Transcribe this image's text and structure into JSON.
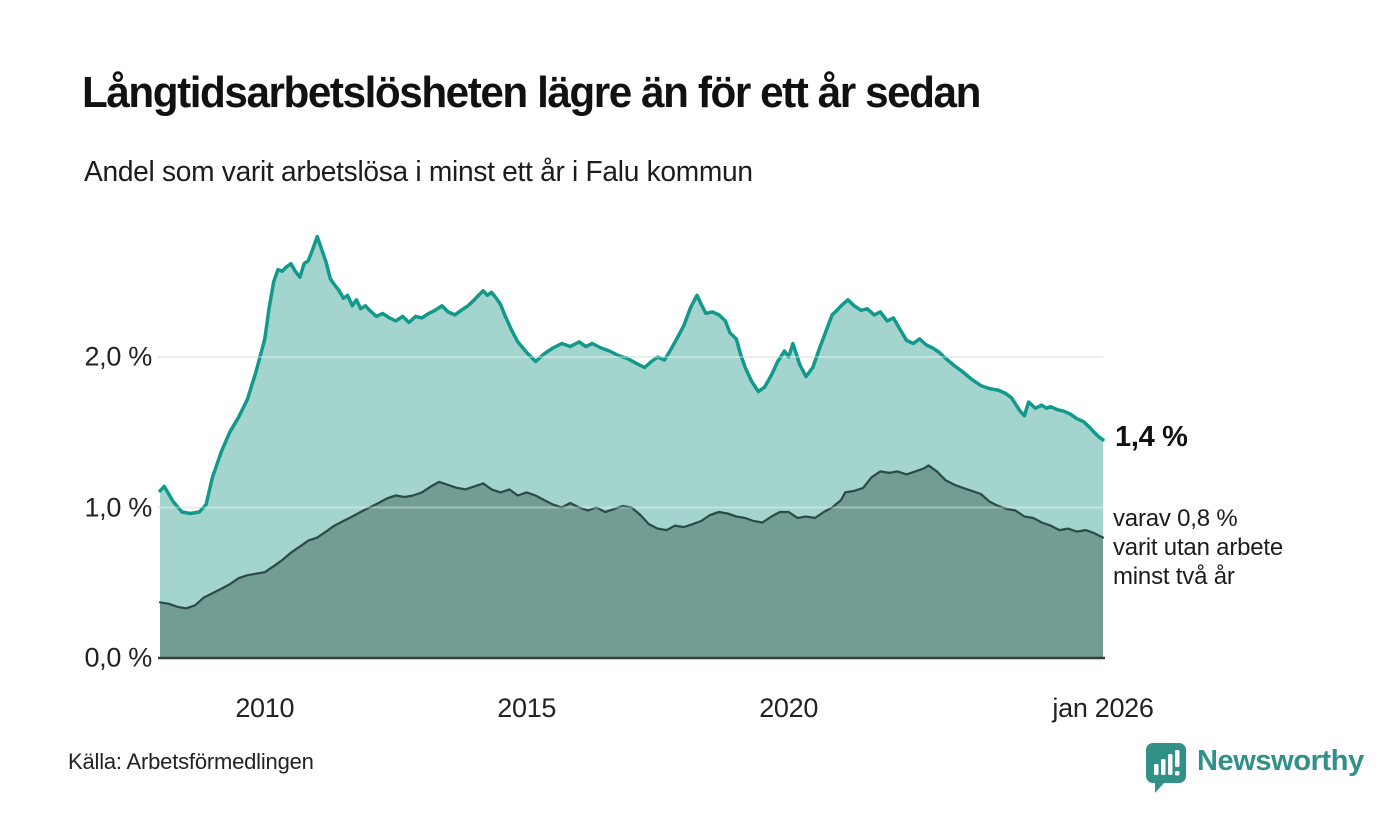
{
  "header": {
    "title": "Långtidsarbetslösheten lägre än för ett år sedan",
    "subtitle": "Andel som varit arbetslösa i minst ett år i Falu kommun"
  },
  "annotations": {
    "latest_total": "1,4 %",
    "secondary_lines": [
      "varav 0,8 %",
      "varit utan arbete",
      "minst två år"
    ]
  },
  "axis": {
    "y_ticks": [
      {
        "label": "0,0 %",
        "value": 0.0
      },
      {
        "label": "1,0 %",
        "value": 1.0
      },
      {
        "label": "2,0 %",
        "value": 2.0
      }
    ],
    "x_ticks": [
      {
        "label": "2010",
        "year": 2010
      },
      {
        "label": "2015",
        "year": 2015
      },
      {
        "label": "2020",
        "year": 2020
      },
      {
        "label": "jan 2026",
        "year": 2026
      }
    ]
  },
  "footer": {
    "source": "Källa: Arbetsförmedlingen",
    "brand": "Newsworthy"
  },
  "colors": {
    "total_fill": "#9fd3cc",
    "total_line": "#12998b",
    "secondary_fill": "#6f9a93",
    "secondary_line": "#2d4b46",
    "gridline": "#e2e2e2",
    "baseline": "#3c3c3c",
    "brand_teal": "#319087",
    "text_dark": "#111111"
  },
  "chart_data": {
    "type": "area",
    "title": "Långtidsarbetslösheten lägre än för ett år sedan",
    "subtitle": "Andel som varit arbetslösa i minst ett år i Falu kommun",
    "y_unit": "%",
    "ylim": [
      0,
      2.9
    ],
    "x_range": [
      2008,
      2026
    ],
    "gridlines": [
      1.0,
      2.0
    ],
    "grid": true,
    "legend_position": "direct-labels-right",
    "latest_values": {
      "total": 1.4,
      "minst_tva_ar": 0.8
    },
    "series": [
      {
        "name": "Arbetslösa minst ett år (andel, totalt)",
        "fill": "total_fill",
        "stroke": "total_line",
        "stroke_width": 3.5,
        "points": [
          [
            2008.0,
            1.11
          ],
          [
            2008.08,
            1.14
          ],
          [
            2008.25,
            1.04
          ],
          [
            2008.42,
            0.97
          ],
          [
            2008.58,
            0.96
          ],
          [
            2008.75,
            0.97
          ],
          [
            2008.88,
            1.02
          ],
          [
            2009.0,
            1.2
          ],
          [
            2009.17,
            1.37
          ],
          [
            2009.33,
            1.5
          ],
          [
            2009.5,
            1.6
          ],
          [
            2009.67,
            1.72
          ],
          [
            2009.83,
            1.9
          ],
          [
            2010.0,
            2.12
          ],
          [
            2010.08,
            2.32
          ],
          [
            2010.17,
            2.5
          ],
          [
            2010.25,
            2.58
          ],
          [
            2010.33,
            2.57
          ],
          [
            2010.42,
            2.6
          ],
          [
            2010.5,
            2.62
          ],
          [
            2010.58,
            2.57
          ],
          [
            2010.67,
            2.53
          ],
          [
            2010.75,
            2.62
          ],
          [
            2010.83,
            2.64
          ],
          [
            2010.92,
            2.72
          ],
          [
            2011.0,
            2.8
          ],
          [
            2011.08,
            2.72
          ],
          [
            2011.17,
            2.63
          ],
          [
            2011.25,
            2.52
          ],
          [
            2011.33,
            2.48
          ],
          [
            2011.42,
            2.44
          ],
          [
            2011.5,
            2.39
          ],
          [
            2011.58,
            2.41
          ],
          [
            2011.67,
            2.34
          ],
          [
            2011.75,
            2.38
          ],
          [
            2011.83,
            2.32
          ],
          [
            2011.92,
            2.34
          ],
          [
            2012.0,
            2.31
          ],
          [
            2012.13,
            2.27
          ],
          [
            2012.25,
            2.29
          ],
          [
            2012.38,
            2.26
          ],
          [
            2012.5,
            2.24
          ],
          [
            2012.63,
            2.27
          ],
          [
            2012.75,
            2.23
          ],
          [
            2012.88,
            2.27
          ],
          [
            2013.0,
            2.26
          ],
          [
            2013.13,
            2.29
          ],
          [
            2013.25,
            2.31
          ],
          [
            2013.38,
            2.34
          ],
          [
            2013.5,
            2.3
          ],
          [
            2013.63,
            2.28
          ],
          [
            2013.75,
            2.31
          ],
          [
            2013.88,
            2.34
          ],
          [
            2014.0,
            2.38
          ],
          [
            2014.08,
            2.41
          ],
          [
            2014.17,
            2.44
          ],
          [
            2014.25,
            2.41
          ],
          [
            2014.33,
            2.43
          ],
          [
            2014.42,
            2.39
          ],
          [
            2014.5,
            2.35
          ],
          [
            2014.58,
            2.28
          ],
          [
            2014.71,
            2.18
          ],
          [
            2014.83,
            2.1
          ],
          [
            2015.0,
            2.03
          ],
          [
            2015.17,
            1.97
          ],
          [
            2015.33,
            2.02
          ],
          [
            2015.5,
            2.06
          ],
          [
            2015.67,
            2.09
          ],
          [
            2015.83,
            2.07
          ],
          [
            2016.0,
            2.1
          ],
          [
            2016.13,
            2.07
          ],
          [
            2016.25,
            2.09
          ],
          [
            2016.42,
            2.06
          ],
          [
            2016.58,
            2.04
          ],
          [
            2016.75,
            2.01
          ],
          [
            2016.92,
            1.99
          ],
          [
            2017.08,
            1.96
          ],
          [
            2017.25,
            1.93
          ],
          [
            2017.38,
            1.97
          ],
          [
            2017.5,
            2.0
          ],
          [
            2017.63,
            1.98
          ],
          [
            2017.75,
            2.05
          ],
          [
            2017.88,
            2.13
          ],
          [
            2018.0,
            2.21
          ],
          [
            2018.13,
            2.33
          ],
          [
            2018.25,
            2.41
          ],
          [
            2018.33,
            2.35
          ],
          [
            2018.42,
            2.29
          ],
          [
            2018.54,
            2.3
          ],
          [
            2018.67,
            2.28
          ],
          [
            2018.79,
            2.24
          ],
          [
            2018.88,
            2.16
          ],
          [
            2019.0,
            2.12
          ],
          [
            2019.08,
            2.02
          ],
          [
            2019.17,
            1.93
          ],
          [
            2019.29,
            1.84
          ],
          [
            2019.42,
            1.77
          ],
          [
            2019.54,
            1.8
          ],
          [
            2019.67,
            1.88
          ],
          [
            2019.79,
            1.97
          ],
          [
            2019.92,
            2.04
          ],
          [
            2020.0,
            2.0
          ],
          [
            2020.08,
            2.09
          ],
          [
            2020.21,
            1.95
          ],
          [
            2020.33,
            1.87
          ],
          [
            2020.46,
            1.93
          ],
          [
            2020.58,
            2.05
          ],
          [
            2020.71,
            2.17
          ],
          [
            2020.83,
            2.28
          ],
          [
            2020.92,
            2.31
          ],
          [
            2021.0,
            2.34
          ],
          [
            2021.13,
            2.38
          ],
          [
            2021.25,
            2.34
          ],
          [
            2021.38,
            2.31
          ],
          [
            2021.5,
            2.32
          ],
          [
            2021.63,
            2.28
          ],
          [
            2021.75,
            2.3
          ],
          [
            2021.88,
            2.24
          ],
          [
            2022.0,
            2.26
          ],
          [
            2022.13,
            2.18
          ],
          [
            2022.25,
            2.11
          ],
          [
            2022.38,
            2.09
          ],
          [
            2022.5,
            2.12
          ],
          [
            2022.63,
            2.08
          ],
          [
            2022.75,
            2.06
          ],
          [
            2022.88,
            2.03
          ],
          [
            2023.0,
            1.99
          ],
          [
            2023.17,
            1.94
          ],
          [
            2023.33,
            1.9
          ],
          [
            2023.5,
            1.85
          ],
          [
            2023.67,
            1.81
          ],
          [
            2023.83,
            1.79
          ],
          [
            2024.0,
            1.78
          ],
          [
            2024.13,
            1.76
          ],
          [
            2024.25,
            1.73
          ],
          [
            2024.42,
            1.64
          ],
          [
            2024.5,
            1.61
          ],
          [
            2024.58,
            1.7
          ],
          [
            2024.71,
            1.66
          ],
          [
            2024.83,
            1.68
          ],
          [
            2024.92,
            1.66
          ],
          [
            2025.0,
            1.67
          ],
          [
            2025.13,
            1.65
          ],
          [
            2025.25,
            1.64
          ],
          [
            2025.38,
            1.62
          ],
          [
            2025.5,
            1.59
          ],
          [
            2025.63,
            1.57
          ],
          [
            2025.75,
            1.53
          ],
          [
            2025.83,
            1.5
          ],
          [
            2025.92,
            1.47
          ],
          [
            2026.0,
            1.45
          ]
        ]
      },
      {
        "name": "varav arbetslösa minst två år",
        "fill": "secondary_fill",
        "stroke": "secondary_line",
        "stroke_width": 2.25,
        "points": [
          [
            2008.0,
            0.37
          ],
          [
            2008.17,
            0.36
          ],
          [
            2008.33,
            0.34
          ],
          [
            2008.5,
            0.33
          ],
          [
            2008.67,
            0.35
          ],
          [
            2008.83,
            0.4
          ],
          [
            2009.0,
            0.43
          ],
          [
            2009.17,
            0.46
          ],
          [
            2009.33,
            0.49
          ],
          [
            2009.5,
            0.53
          ],
          [
            2009.67,
            0.55
          ],
          [
            2009.83,
            0.56
          ],
          [
            2010.0,
            0.57
          ],
          [
            2010.17,
            0.61
          ],
          [
            2010.33,
            0.65
          ],
          [
            2010.5,
            0.7
          ],
          [
            2010.67,
            0.74
          ],
          [
            2010.83,
            0.78
          ],
          [
            2011.0,
            0.8
          ],
          [
            2011.17,
            0.84
          ],
          [
            2011.33,
            0.88
          ],
          [
            2011.5,
            0.91
          ],
          [
            2011.67,
            0.94
          ],
          [
            2011.83,
            0.97
          ],
          [
            2012.0,
            1.0
          ],
          [
            2012.17,
            1.03
          ],
          [
            2012.33,
            1.06
          ],
          [
            2012.5,
            1.08
          ],
          [
            2012.67,
            1.07
          ],
          [
            2012.83,
            1.08
          ],
          [
            2013.0,
            1.1
          ],
          [
            2013.17,
            1.14
          ],
          [
            2013.33,
            1.17
          ],
          [
            2013.5,
            1.15
          ],
          [
            2013.67,
            1.13
          ],
          [
            2013.83,
            1.12
          ],
          [
            2014.0,
            1.14
          ],
          [
            2014.17,
            1.16
          ],
          [
            2014.33,
            1.12
          ],
          [
            2014.5,
            1.1
          ],
          [
            2014.67,
            1.12
          ],
          [
            2014.83,
            1.08
          ],
          [
            2015.0,
            1.1
          ],
          [
            2015.17,
            1.08
          ],
          [
            2015.33,
            1.05
          ],
          [
            2015.5,
            1.02
          ],
          [
            2015.67,
            1.0
          ],
          [
            2015.83,
            1.03
          ],
          [
            2016.0,
            1.0
          ],
          [
            2016.17,
            0.98
          ],
          [
            2016.33,
            1.0
          ],
          [
            2016.5,
            0.97
          ],
          [
            2016.67,
            0.99
          ],
          [
            2016.83,
            1.01
          ],
          [
            2017.0,
            1.0
          ],
          [
            2017.17,
            0.95
          ],
          [
            2017.33,
            0.89
          ],
          [
            2017.5,
            0.86
          ],
          [
            2017.67,
            0.85
          ],
          [
            2017.83,
            0.88
          ],
          [
            2018.0,
            0.87
          ],
          [
            2018.17,
            0.89
          ],
          [
            2018.33,
            0.91
          ],
          [
            2018.5,
            0.95
          ],
          [
            2018.67,
            0.97
          ],
          [
            2018.83,
            0.96
          ],
          [
            2019.0,
            0.94
          ],
          [
            2019.17,
            0.93
          ],
          [
            2019.33,
            0.91
          ],
          [
            2019.5,
            0.9
          ],
          [
            2019.67,
            0.94
          ],
          [
            2019.83,
            0.97
          ],
          [
            2020.0,
            0.97
          ],
          [
            2020.17,
            0.93
          ],
          [
            2020.33,
            0.94
          ],
          [
            2020.5,
            0.93
          ],
          [
            2020.67,
            0.97
          ],
          [
            2020.83,
            1.0
          ],
          [
            2021.0,
            1.05
          ],
          [
            2021.08,
            1.1
          ],
          [
            2021.25,
            1.11
          ],
          [
            2021.42,
            1.13
          ],
          [
            2021.58,
            1.2
          ],
          [
            2021.75,
            1.24
          ],
          [
            2021.92,
            1.23
          ],
          [
            2022.08,
            1.24
          ],
          [
            2022.25,
            1.22
          ],
          [
            2022.42,
            1.24
          ],
          [
            2022.58,
            1.26
          ],
          [
            2022.67,
            1.28
          ],
          [
            2022.83,
            1.24
          ],
          [
            2023.0,
            1.18
          ],
          [
            2023.17,
            1.15
          ],
          [
            2023.33,
            1.13
          ],
          [
            2023.5,
            1.11
          ],
          [
            2023.67,
            1.09
          ],
          [
            2023.83,
            1.04
          ],
          [
            2024.0,
            1.01
          ],
          [
            2024.17,
            0.99
          ],
          [
            2024.33,
            0.98
          ],
          [
            2024.5,
            0.94
          ],
          [
            2024.67,
            0.93
          ],
          [
            2024.83,
            0.9
          ],
          [
            2025.0,
            0.88
          ],
          [
            2025.17,
            0.85
          ],
          [
            2025.33,
            0.86
          ],
          [
            2025.5,
            0.84
          ],
          [
            2025.67,
            0.85
          ],
          [
            2025.83,
            0.83
          ],
          [
            2026.0,
            0.8
          ]
        ]
      }
    ]
  }
}
